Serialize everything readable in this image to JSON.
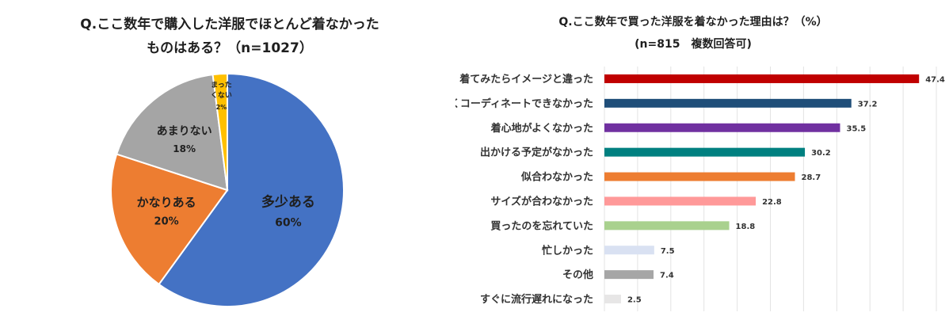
{
  "pie": {
    "title_line1": "Q.ここ数年で購入した洋服でほとんど着なかった",
    "title_line2": "ものはある？（n=1027）",
    "chart_data": {
      "type": "pie",
      "slices": [
        {
          "label": "多少ある",
          "value": 60,
          "display": "60%",
          "color": "#4472C4"
        },
        {
          "label": "かなりある",
          "value": 20,
          "display": "20%",
          "color": "#ED7D31"
        },
        {
          "label": "あまりない",
          "value": 18,
          "display": "18%",
          "color": "#A5A5A5"
        },
        {
          "label": "まったくない",
          "label_lines": [
            "まった",
            "くない"
          ],
          "value": 2,
          "display": "2%",
          "color": "#FFC000"
        }
      ]
    }
  },
  "bar": {
    "title_line1": "Q.ここ数年で買った洋服を着なかった理由は？（%）",
    "title_line2": "(n=815　複数回答可)",
    "chart_data": {
      "type": "bar",
      "orientation": "horizontal",
      "xlim": [
        0,
        50
      ],
      "grid": true,
      "categories": [
        "着てみたらイメージと違った",
        "うまくコーディネートできなかった",
        "着心地がよくなかった",
        "出かける予定がなかった",
        "似合わなかった",
        "サイズが合わなかった",
        "買ったのを忘れていた",
        "忙しかった",
        "その他",
        "すぐに流行遅れになった"
      ],
      "values": [
        47.4,
        37.2,
        35.5,
        30.2,
        28.7,
        22.8,
        18.8,
        7.5,
        7.4,
        2.5
      ],
      "value_labels": [
        "47.4",
        "37.2",
        "35.5",
        "30.2",
        "28.7",
        "22.8",
        "18.8",
        "7.5",
        "7.4",
        "2.5"
      ],
      "colors": [
        "#C00000",
        "#1F4E79",
        "#7030A0",
        "#008080",
        "#ED7D31",
        "#FF9999",
        "#A9D18E",
        "#D9E1F2",
        "#A6A6A6",
        "#E7E6E6"
      ]
    }
  }
}
